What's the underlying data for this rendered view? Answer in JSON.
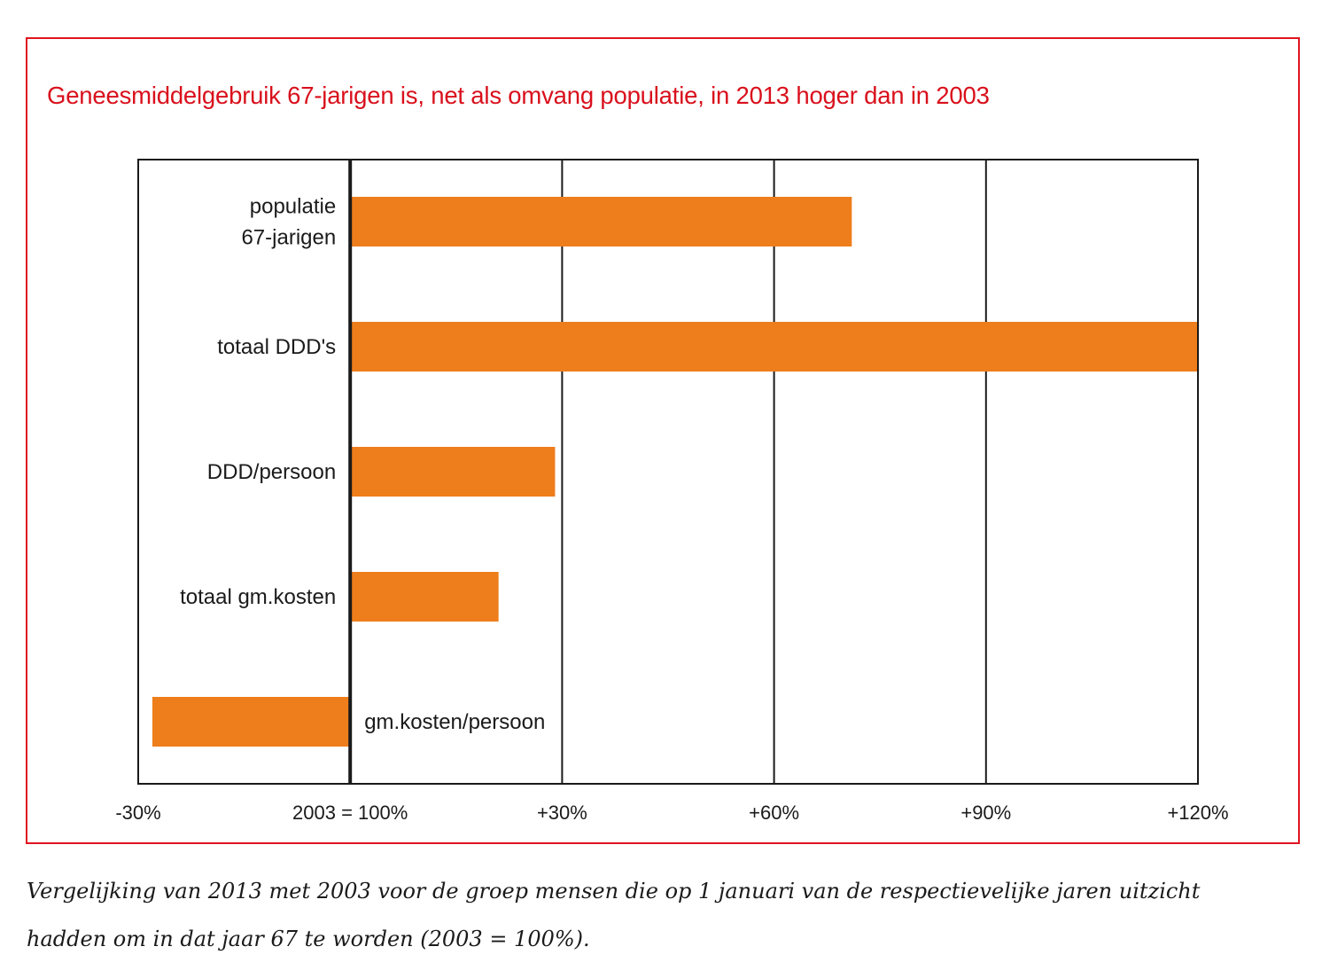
{
  "chart_data": {
    "type": "bar",
    "orientation": "horizontal",
    "title": "Geneesmiddelgebruik 67-jarigen is, net als omvang populatie, in 2013 hoger dan in 2003",
    "categories": [
      [
        "populatie",
        "67-jarigen"
      ],
      [
        "totaal DDD's"
      ],
      [
        "DDD/persoon"
      ],
      [
        "totaal gm.kosten"
      ],
      [
        "gm.kosten/persoon"
      ]
    ],
    "values": [
      71,
      120,
      29,
      21,
      -28
    ],
    "unit": "% change vs 2003",
    "xlabel": "",
    "ylabel": "",
    "xlim": [
      -30,
      120
    ],
    "x_ticks": [
      -30,
      0,
      30,
      60,
      90,
      120
    ],
    "x_tick_labels": [
      "-30%",
      "2003 = 100%",
      "+30%",
      "+60%",
      "+90%",
      "+120%"
    ],
    "grid": "vertical",
    "bar_color": "#ee7d1b",
    "baseline": 0,
    "legend": "none"
  },
  "caption": {
    "lines": [
      "Vergelijking van 2013 met 2003 voor de groep mensen die op 1 januari van de respectievelijke jaren uitzicht",
      "hadden om in dat jaar 67 te worden (2003 = 100%)."
    ]
  },
  "colors": {
    "frame": "#e0141f",
    "title": "#d9101c",
    "bar": "#ee7d1b",
    "axis": "#1a1a1a"
  }
}
